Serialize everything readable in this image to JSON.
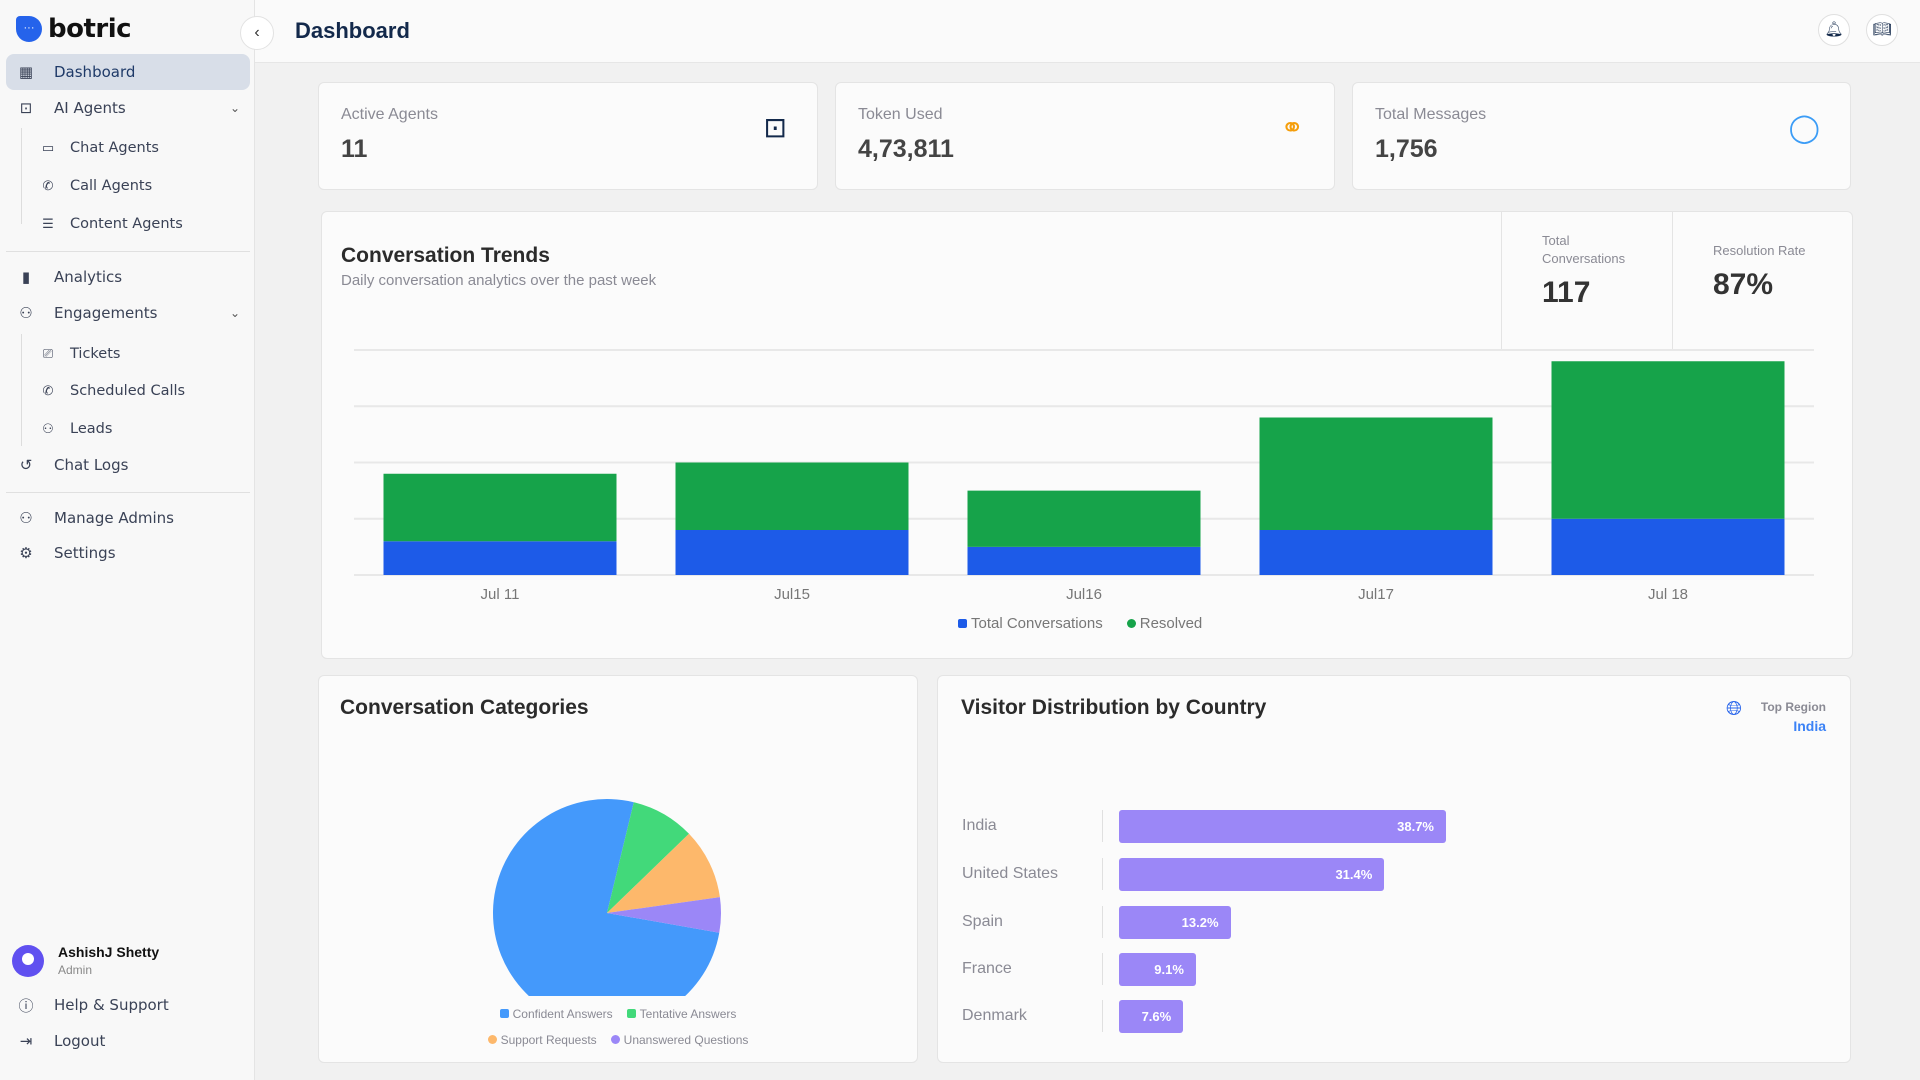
{
  "app": {
    "brand": "botric",
    "page_title": "Dashboard"
  },
  "sidebar": {
    "items": [
      {
        "label": "Dashboard",
        "icon": "grid-icon"
      },
      {
        "label": "AI Agents",
        "icon": "robot-icon"
      },
      {
        "label": "Chat Agents",
        "icon": "chat-icon"
      },
      {
        "label": "Call Agents",
        "icon": "phone-icon"
      },
      {
        "label": "Content Agents",
        "icon": "list-icon"
      },
      {
        "label": "Analytics",
        "icon": "bar-chart-icon"
      },
      {
        "label": "Engagements",
        "icon": "users-icon"
      },
      {
        "label": "Tickets",
        "icon": "ticket-icon"
      },
      {
        "label": "Scheduled Calls",
        "icon": "phone-icon"
      },
      {
        "label": "Leads",
        "icon": "users-icon"
      },
      {
        "label": "Chat Logs",
        "icon": "history-icon"
      },
      {
        "label": "Manage Admins",
        "icon": "users-icon"
      },
      {
        "label": "Settings",
        "icon": "gear-icon"
      }
    ],
    "user": {
      "name": "AshishJ Shetty",
      "role": "Admin"
    },
    "help": "Help & Support",
    "logout": "Logout"
  },
  "stats": [
    {
      "label": "Active Agents",
      "value": "11",
      "icon": "robot-icon",
      "color": "#13294b"
    },
    {
      "label": "Token Used",
      "value": "4,73,811",
      "icon": "coins-icon",
      "color": "#f59e0b"
    },
    {
      "label": "Total Messages",
      "value": "1,756",
      "icon": "message-icon",
      "color": "#3b9cf6"
    }
  ],
  "trends": {
    "title": "Conversation Trends",
    "subtitle": "Daily conversation analytics over the past week",
    "total_label": "Total Conversations",
    "total_value": "117",
    "rate_label": "Resolution Rate",
    "rate_value": "87%"
  },
  "categories": {
    "title": "Conversation Categories"
  },
  "countries": {
    "title": "Visitor Distribution by Country",
    "top_region_label": "Top Region",
    "top_region_value": "India"
  },
  "chart_data": [
    {
      "type": "bar",
      "stacked": true,
      "categories": [
        "Jul 11",
        "Jul15",
        "Jul16",
        "Jul17",
        "Jul 18"
      ],
      "series": [
        {
          "name": "Total Conversations",
          "color": "#1d5be8",
          "values": [
            6,
            8,
            5,
            8,
            10
          ]
        },
        {
          "name": "Resolved",
          "color": "#16a34a",
          "values": [
            12,
            12,
            10,
            20,
            28
          ]
        }
      ],
      "ylim": [
        0,
        40
      ],
      "grid": true,
      "legend": "bottom"
    },
    {
      "type": "pie",
      "labels": [
        "Confident Answers",
        "Tentative Answers",
        "Support Requests",
        "Unanswered Questions"
      ],
      "values": [
        76,
        9,
        10,
        5
      ],
      "colors": [
        "#4499fb",
        "#42d97a",
        "#fdb86b",
        "#9b87f7"
      ],
      "legend": "bottom"
    },
    {
      "type": "bar",
      "orientation": "horizontal",
      "categories": [
        "India",
        "United States",
        "Spain",
        "France",
        "Denmark"
      ],
      "values": [
        38.7,
        31.4,
        13.2,
        9.1,
        7.6
      ],
      "labels": [
        "38.7%",
        "31.4%",
        "13.2%",
        "9.1%",
        "7.6%"
      ],
      "color": "#9b87f7"
    }
  ]
}
